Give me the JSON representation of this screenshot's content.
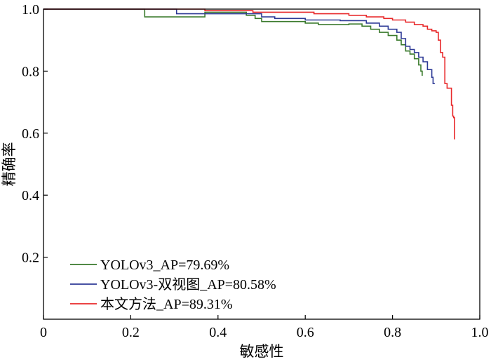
{
  "chart_data": {
    "type": "line",
    "title": "",
    "xlabel": "敏感性",
    "ylabel": "精确率",
    "xlim": [
      0,
      1.0
    ],
    "ylim": [
      0,
      1.0
    ],
    "x_ticks": [
      0,
      0.2,
      0.4,
      0.6,
      0.8,
      1.0
    ],
    "x_tick_labels": [
      "0",
      "0.2",
      "0.4",
      "0.6",
      "0.8",
      "1.0"
    ],
    "y_ticks": [
      0.2,
      0.4,
      0.6,
      0.8,
      1.0
    ],
    "y_tick_labels": [
      "0.2",
      "0.4",
      "0.6",
      "0.8",
      "1.0"
    ],
    "grid": false,
    "legend_position": "bottom-left",
    "series": [
      {
        "name": "YOLOv3_AP=79.69%",
        "color": "#3a7a2c",
        "points": [
          [
            0,
            1.0
          ],
          [
            0.232,
            1.0
          ],
          [
            0.232,
            0.975
          ],
          [
            0.37,
            0.99
          ],
          [
            0.465,
            0.98
          ],
          [
            0.485,
            0.97
          ],
          [
            0.5,
            0.96
          ],
          [
            0.6,
            0.955
          ],
          [
            0.63,
            0.95
          ],
          [
            0.7,
            0.952
          ],
          [
            0.73,
            0.945
          ],
          [
            0.75,
            0.935
          ],
          [
            0.77,
            0.925
          ],
          [
            0.79,
            0.915
          ],
          [
            0.81,
            0.9
          ],
          [
            0.82,
            0.885
          ],
          [
            0.83,
            0.865
          ],
          [
            0.84,
            0.855
          ],
          [
            0.85,
            0.84
          ],
          [
            0.86,
            0.82
          ],
          [
            0.865,
            0.8
          ],
          [
            0.868,
            0.785
          ]
        ]
      },
      {
        "name": "YOLOv3-双视图_AP=80.58%",
        "color": "#2e3a96",
        "points": [
          [
            0,
            1.0
          ],
          [
            0.305,
            1.0
          ],
          [
            0.305,
            0.985
          ],
          [
            0.45,
            0.985
          ],
          [
            0.5,
            0.975
          ],
          [
            0.53,
            0.97
          ],
          [
            0.6,
            0.965
          ],
          [
            0.68,
            0.963
          ],
          [
            0.74,
            0.955
          ],
          [
            0.77,
            0.945
          ],
          [
            0.79,
            0.935
          ],
          [
            0.81,
            0.925
          ],
          [
            0.82,
            0.905
          ],
          [
            0.83,
            0.88
          ],
          [
            0.84,
            0.87
          ],
          [
            0.85,
            0.86
          ],
          [
            0.86,
            0.845
          ],
          [
            0.87,
            0.83
          ],
          [
            0.88,
            0.805
          ],
          [
            0.89,
            0.78
          ],
          [
            0.893,
            0.76
          ],
          [
            0.897,
            0.76
          ]
        ]
      },
      {
        "name": "本文方法_AP=89.31%",
        "color": "#e8282a",
        "points": [
          [
            0,
            1.0
          ],
          [
            0.37,
            1.0
          ],
          [
            0.37,
            0.995
          ],
          [
            0.48,
            0.99
          ],
          [
            0.62,
            0.985
          ],
          [
            0.7,
            0.98
          ],
          [
            0.74,
            0.975
          ],
          [
            0.78,
            0.97
          ],
          [
            0.8,
            0.965
          ],
          [
            0.83,
            0.958
          ],
          [
            0.85,
            0.95
          ],
          [
            0.87,
            0.945
          ],
          [
            0.88,
            0.935
          ],
          [
            0.89,
            0.93
          ],
          [
            0.9,
            0.925
          ],
          [
            0.905,
            0.9
          ],
          [
            0.91,
            0.86
          ],
          [
            0.915,
            0.845
          ],
          [
            0.92,
            0.76
          ],
          [
            0.925,
            0.745
          ],
          [
            0.933,
            0.745
          ],
          [
            0.935,
            0.69
          ],
          [
            0.938,
            0.655
          ],
          [
            0.94,
            0.65
          ],
          [
            0.942,
            0.58
          ]
        ]
      }
    ]
  }
}
